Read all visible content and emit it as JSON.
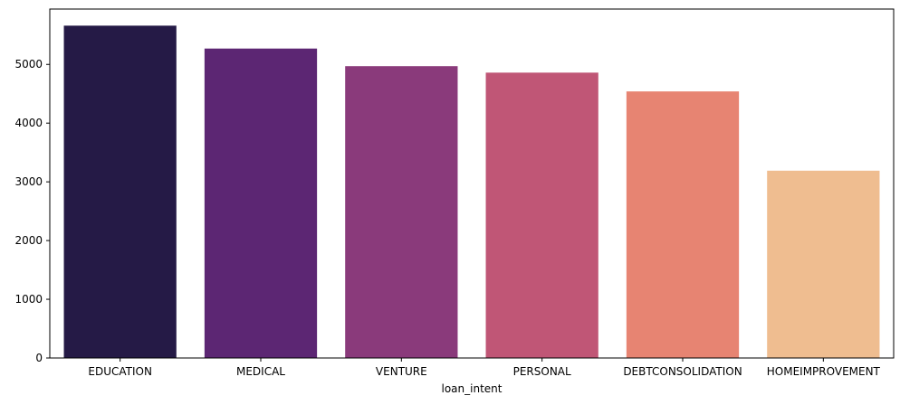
{
  "chart_data": {
    "type": "bar",
    "title": "",
    "xlabel": "loan_intent",
    "ylabel": "",
    "categories": [
      "EDUCATION",
      "MEDICAL",
      "VENTURE",
      "PERSONAL",
      "DEBTCONSOLIDATION",
      "HOMEIMPROVEMENT"
    ],
    "values": [
      5660,
      5270,
      4970,
      4860,
      4540,
      3190
    ],
    "colors": [
      "#251a46",
      "#5c2673",
      "#8a3a7b",
      "#c05676",
      "#e78472",
      "#efbd90"
    ],
    "ylim": [
      0,
      5943
    ],
    "yticks": [
      0,
      1000,
      2000,
      3000,
      4000,
      5000
    ],
    "grid": false,
    "legend": "none"
  }
}
